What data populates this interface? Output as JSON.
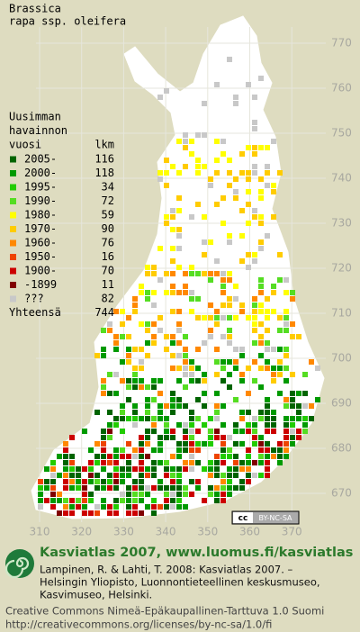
{
  "title": [
    "Brassica",
    "rapa ssp. oleifera"
  ],
  "legend": {
    "heading": [
      "Uusimman",
      "havainnon",
      "vuosi"
    ],
    "count_heading": "lkm",
    "rows": [
      {
        "label": "2005-",
        "count": 116,
        "color": "#006400"
      },
      {
        "label": "2000-",
        "count": 118,
        "color": "#009a00"
      },
      {
        "label": "1995-",
        "count": 34,
        "color": "#22cc00"
      },
      {
        "label": "1990-",
        "count": 72,
        "color": "#55dd22"
      },
      {
        "label": "1980-",
        "count": 59,
        "color": "#ffff00"
      },
      {
        "label": "1970-",
        "count": 90,
        "color": "#ffcc00"
      },
      {
        "label": "1960-",
        "count": 76,
        "color": "#ff8800"
      },
      {
        "label": "1950-",
        "count": 16,
        "color": "#ee4400"
      },
      {
        "label": "1900-",
        "count": 70,
        "color": "#cc0000"
      },
      {
        "label": "-1899",
        "count": 11,
        "color": "#800000"
      },
      {
        "label": "???",
        "count": 82,
        "color": "#c8c8c8"
      }
    ],
    "total_label": "Yhteensä",
    "total": 744
  },
  "map": {
    "yticks": [
      770,
      760,
      750,
      740,
      730,
      720,
      710,
      700,
      690,
      680,
      670
    ],
    "xticks": [
      310,
      320,
      330,
      340,
      350,
      360,
      370
    ]
  },
  "badge": [
    "cc",
    "BY-NC-SA"
  ],
  "footer": {
    "brand": "Kasviatlas 2007, www.luomus.fi/kasviatlas",
    "citation": [
      "Lampinen, R. & Lahti, T. 2008: Kasviatlas 2007. –",
      "Helsingin Yliopisto, Luonnontieteellinen keskusmuseo,",
      "Kasvimuseo, Helsinki."
    ],
    "license": [
      "Creative Commons Nimeä-Epäkaupallinen-Tarttuva 1.0 Suomi",
      "http://creativecommons.org/licenses/by-nc-sa/1.0/fi"
    ]
  }
}
